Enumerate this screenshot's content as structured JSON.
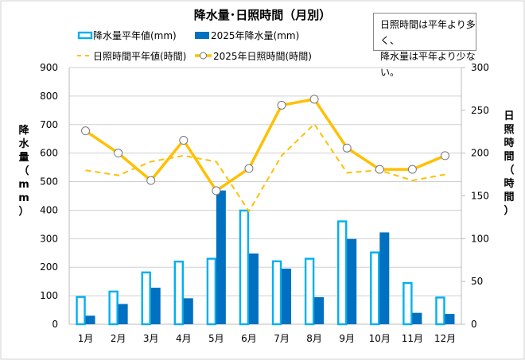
{
  "chart_data": {
    "type": "bar+line",
    "title": "降水量･日照時間（月別）",
    "categories": [
      "1月",
      "2月",
      "3月",
      "4月",
      "5月",
      "6月",
      "7月",
      "8月",
      "9月",
      "10月",
      "11月",
      "12月"
    ],
    "ylabel": "降水量（mm）",
    "y2label": "日照時間（時間）",
    "ylim": [
      0,
      900
    ],
    "y2lim": [
      0,
      300
    ],
    "yticks": [
      0,
      100,
      200,
      300,
      400,
      500,
      600,
      700,
      800,
      900
    ],
    "y2ticks": [
      0,
      50,
      100,
      150,
      200,
      250,
      300
    ],
    "grid": true,
    "legend_placement": "top-left",
    "series": [
      {
        "name": "降水量平年値(mm)",
        "kind": "bar-outline",
        "axis": "left",
        "color": "#00B0F0",
        "values": [
          99,
          118,
          185,
          223,
          233,
          402,
          224,
          233,
          364,
          255,
          148,
          97
        ]
      },
      {
        "name": "2025年降水量(mm)",
        "kind": "bar",
        "axis": "left",
        "color": "#0070C0",
        "values": [
          30,
          71,
          128,
          91,
          469,
          248,
          195,
          95,
          299,
          322,
          40,
          36
        ]
      },
      {
        "name": "日照時間平年値(時間)",
        "kind": "dashed-line",
        "axis": "right",
        "color": "#FFC000",
        "values": [
          180,
          174,
          190,
          197,
          190,
          132,
          197,
          234,
          177,
          180,
          168,
          175
        ]
      },
      {
        "name": "2025年日照時間(時間)",
        "kind": "line-marker",
        "axis": "right",
        "color": "#FFC000",
        "values": [
          226,
          200,
          168,
          215,
          156,
          182,
          256,
          263,
          206,
          181,
          181,
          197
        ]
      }
    ],
    "annotation": [
      "日照時間は平年より多く、",
      "降水量は平年より少ない。"
    ]
  }
}
